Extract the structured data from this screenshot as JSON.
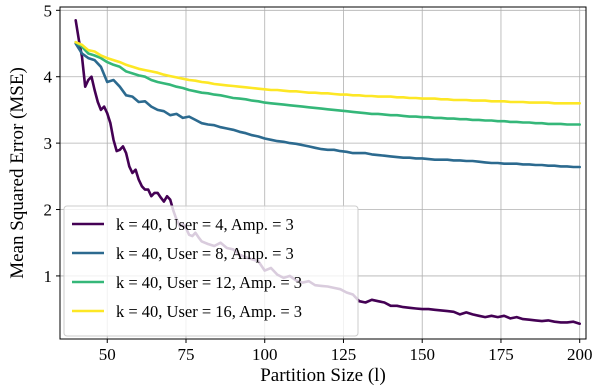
{
  "chart_data": {
    "type": "line",
    "title": "",
    "xlabel": "Partition Size (l)",
    "ylabel": "Mean Squared Error (MSE)",
    "xlim": [
      35,
      202
    ],
    "ylim": [
      0.05,
      5.05
    ],
    "xticks": [
      50,
      75,
      100,
      125,
      150,
      175,
      200
    ],
    "yticks": [
      1,
      2,
      3,
      4,
      5
    ],
    "grid": true,
    "legend_position": "lower-left",
    "series": [
      {
        "name": "k = 40, User = 4, Amp. = 3",
        "color": "#440154",
        "x": [
          40,
          41,
          42,
          43,
          44,
          45,
          46,
          47,
          48,
          49,
          50,
          51,
          52,
          53,
          54,
          55,
          56,
          57,
          58,
          59,
          60,
          61,
          62,
          63,
          64,
          65,
          66,
          67,
          68,
          69,
          70,
          71,
          72,
          73,
          74,
          75,
          76,
          77,
          78,
          79,
          80,
          82,
          84,
          86,
          88,
          90,
          92,
          94,
          96,
          98,
          100,
          102,
          104,
          106,
          108,
          110,
          112,
          114,
          116,
          118,
          120,
          122,
          124,
          126,
          128,
          130,
          132,
          134,
          136,
          138,
          140,
          142,
          144,
          146,
          148,
          150,
          152,
          154,
          156,
          158,
          160,
          162,
          164,
          166,
          168,
          170,
          172,
          174,
          176,
          178,
          180,
          182,
          184,
          186,
          188,
          190,
          192,
          194,
          196,
          198,
          200
        ],
        "values": [
          4.85,
          4.55,
          4.3,
          3.85,
          3.95,
          4.0,
          3.8,
          3.62,
          3.5,
          3.55,
          3.45,
          3.3,
          3.05,
          2.88,
          2.9,
          2.95,
          2.85,
          2.65,
          2.55,
          2.6,
          2.45,
          2.35,
          2.3,
          2.3,
          2.2,
          2.25,
          2.25,
          2.18,
          2.12,
          2.2,
          2.15,
          1.98,
          1.85,
          1.75,
          1.78,
          1.72,
          1.62,
          1.6,
          1.65,
          1.58,
          1.52,
          1.48,
          1.45,
          1.5,
          1.42,
          1.4,
          1.32,
          1.28,
          1.25,
          1.22,
          1.08,
          1.12,
          1.02,
          0.97,
          1.0,
          0.93,
          0.9,
          0.92,
          0.86,
          0.85,
          0.84,
          0.82,
          0.8,
          0.75,
          0.72,
          0.62,
          0.6,
          0.64,
          0.62,
          0.6,
          0.55,
          0.55,
          0.53,
          0.52,
          0.51,
          0.5,
          0.5,
          0.49,
          0.48,
          0.47,
          0.46,
          0.42,
          0.45,
          0.42,
          0.4,
          0.38,
          0.4,
          0.38,
          0.4,
          0.36,
          0.38,
          0.35,
          0.34,
          0.33,
          0.32,
          0.33,
          0.31,
          0.3,
          0.3,
          0.31,
          0.28
        ]
      },
      {
        "name": "k = 40, User = 8, Amp. = 3",
        "color": "#2c6a8f",
        "x": [
          40,
          42,
          44,
          46,
          48,
          50,
          52,
          54,
          56,
          58,
          60,
          62,
          64,
          66,
          68,
          70,
          72,
          74,
          76,
          78,
          80,
          82,
          84,
          86,
          88,
          90,
          92,
          94,
          96,
          98,
          100,
          102,
          104,
          106,
          108,
          110,
          112,
          114,
          116,
          118,
          120,
          122,
          124,
          126,
          128,
          130,
          132,
          134,
          136,
          138,
          140,
          142,
          144,
          146,
          148,
          150,
          152,
          154,
          156,
          158,
          160,
          162,
          164,
          166,
          168,
          170,
          172,
          174,
          176,
          178,
          180,
          182,
          184,
          186,
          188,
          190,
          192,
          194,
          196,
          198,
          200
        ],
        "values": [
          4.5,
          4.35,
          4.28,
          4.25,
          4.15,
          3.92,
          3.95,
          3.85,
          3.72,
          3.7,
          3.62,
          3.63,
          3.55,
          3.5,
          3.48,
          3.42,
          3.44,
          3.38,
          3.4,
          3.35,
          3.3,
          3.28,
          3.27,
          3.24,
          3.22,
          3.2,
          3.17,
          3.15,
          3.12,
          3.1,
          3.07,
          3.05,
          3.03,
          3.02,
          3.0,
          2.99,
          2.97,
          2.95,
          2.93,
          2.91,
          2.9,
          2.9,
          2.88,
          2.87,
          2.85,
          2.85,
          2.85,
          2.83,
          2.82,
          2.81,
          2.8,
          2.79,
          2.78,
          2.78,
          2.77,
          2.77,
          2.76,
          2.75,
          2.75,
          2.75,
          2.74,
          2.74,
          2.73,
          2.73,
          2.72,
          2.71,
          2.7,
          2.7,
          2.69,
          2.69,
          2.69,
          2.68,
          2.68,
          2.67,
          2.67,
          2.66,
          2.66,
          2.65,
          2.65,
          2.64,
          2.64
        ]
      },
      {
        "name": "k = 40, User = 12, Amp. = 3",
        "color": "#35b779",
        "x": [
          40,
          42,
          44,
          46,
          48,
          50,
          52,
          54,
          56,
          58,
          60,
          62,
          64,
          66,
          68,
          70,
          72,
          74,
          76,
          78,
          80,
          82,
          84,
          86,
          88,
          90,
          92,
          94,
          96,
          98,
          100,
          102,
          104,
          106,
          108,
          110,
          112,
          114,
          116,
          118,
          120,
          122,
          124,
          126,
          128,
          130,
          132,
          134,
          136,
          138,
          140,
          142,
          144,
          146,
          148,
          150,
          152,
          154,
          156,
          158,
          160,
          162,
          164,
          166,
          168,
          170,
          172,
          174,
          176,
          178,
          180,
          182,
          184,
          186,
          188,
          190,
          192,
          194,
          196,
          198,
          200
        ],
        "values": [
          4.52,
          4.45,
          4.35,
          4.32,
          4.28,
          4.22,
          4.18,
          4.15,
          4.08,
          4.05,
          4.02,
          4.0,
          3.95,
          3.92,
          3.9,
          3.88,
          3.85,
          3.83,
          3.8,
          3.78,
          3.76,
          3.75,
          3.73,
          3.72,
          3.7,
          3.68,
          3.67,
          3.66,
          3.64,
          3.63,
          3.61,
          3.6,
          3.59,
          3.58,
          3.57,
          3.56,
          3.55,
          3.54,
          3.53,
          3.52,
          3.51,
          3.5,
          3.49,
          3.48,
          3.47,
          3.46,
          3.45,
          3.44,
          3.44,
          3.43,
          3.42,
          3.42,
          3.41,
          3.4,
          3.4,
          3.39,
          3.39,
          3.38,
          3.38,
          3.37,
          3.37,
          3.36,
          3.36,
          3.35,
          3.35,
          3.34,
          3.34,
          3.33,
          3.33,
          3.32,
          3.32,
          3.31,
          3.31,
          3.3,
          3.3,
          3.29,
          3.29,
          3.29,
          3.28,
          3.28,
          3.28
        ]
      },
      {
        "name": "k = 40, User = 16, Amp. = 3",
        "color": "#fde725",
        "x": [
          40,
          42,
          44,
          46,
          48,
          50,
          52,
          54,
          56,
          58,
          60,
          62,
          64,
          66,
          68,
          70,
          72,
          74,
          76,
          78,
          80,
          82,
          84,
          86,
          88,
          90,
          92,
          94,
          96,
          98,
          100,
          102,
          104,
          106,
          108,
          110,
          112,
          114,
          116,
          118,
          120,
          122,
          124,
          126,
          128,
          130,
          132,
          134,
          136,
          138,
          140,
          142,
          144,
          146,
          148,
          150,
          152,
          154,
          156,
          158,
          160,
          162,
          164,
          166,
          168,
          170,
          172,
          174,
          176,
          178,
          180,
          182,
          184,
          186,
          188,
          190,
          192,
          194,
          196,
          198,
          200
        ],
        "values": [
          4.52,
          4.48,
          4.4,
          4.38,
          4.32,
          4.28,
          4.25,
          4.22,
          4.18,
          4.15,
          4.12,
          4.1,
          4.08,
          4.06,
          4.03,
          4.01,
          3.99,
          3.97,
          3.95,
          3.94,
          3.92,
          3.91,
          3.89,
          3.88,
          3.87,
          3.86,
          3.85,
          3.84,
          3.83,
          3.82,
          3.81,
          3.8,
          3.8,
          3.79,
          3.78,
          3.78,
          3.77,
          3.76,
          3.76,
          3.75,
          3.75,
          3.74,
          3.73,
          3.73,
          3.72,
          3.72,
          3.71,
          3.71,
          3.7,
          3.7,
          3.7,
          3.69,
          3.69,
          3.68,
          3.68,
          3.67,
          3.67,
          3.67,
          3.66,
          3.66,
          3.65,
          3.65,
          3.65,
          3.64,
          3.64,
          3.64,
          3.63,
          3.63,
          3.63,
          3.62,
          3.62,
          3.62,
          3.61,
          3.61,
          3.61,
          3.61,
          3.6,
          3.6,
          3.6,
          3.6,
          3.6
        ]
      }
    ]
  }
}
